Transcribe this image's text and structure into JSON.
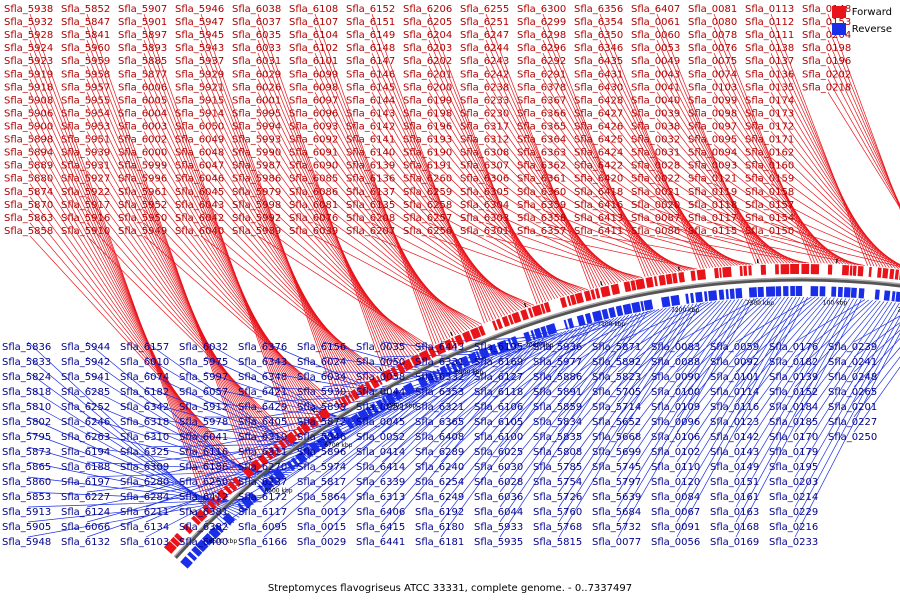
{
  "title": "Streptomyces flavogriseus ATCC 33331, complete genome. - 0..7337497",
  "legend": [
    {
      "label": "Forward",
      "color": "#e8141a"
    },
    {
      "label": "Reverse",
      "color": "#1a2ee8"
    }
  ],
  "colors": {
    "forward": "#e8141a",
    "reverse": "#1a2ee8",
    "backbone": "#555555"
  },
  "scale_labels": [
    "6500 kbp",
    "6600 kbp",
    "6700 kbp",
    "6800 kbp",
    "6900 kbp",
    "7000 kbp",
    "7100 kbp",
    "7200 kbp",
    "7300 kbp",
    "100 kbp",
    "200 kbp",
    "300 kbp"
  ],
  "forward_labels": [
    "Sfla_5938",
    "Sfla_5932",
    "Sfla_5928",
    "Sfla_5924",
    "Sfla_5923",
    "Sfla_5919",
    "Sfla_5918",
    "Sfla_5908",
    "Sfla_5906",
    "Sfla_5900",
    "Sfla_5898",
    "Sfla_5894",
    "Sfla_5889",
    "Sfla_5880",
    "Sfla_5874",
    "Sfla_5870",
    "Sfla_5863",
    "Sfla_5858",
    "Sfla_5852",
    "Sfla_5847",
    "Sfla_5841",
    "Sfla_5960",
    "Sfla_5959",
    "Sfla_5958",
    "Sfla_5957",
    "Sfla_5955",
    "Sfla_5954",
    "Sfla_5953",
    "Sfla_5951",
    "Sfla_5939",
    "Sfla_5931",
    "Sfla_5927",
    "Sfla_5922",
    "Sfla_5917",
    "Sfla_5916",
    "Sfla_5910",
    "Sfla_5907",
    "Sfla_5901",
    "Sfla_5897",
    "Sfla_5893",
    "Sfla_5885",
    "Sfla_5877",
    "Sfla_6006",
    "Sfla_6005",
    "Sfla_6004",
    "Sfla_6003",
    "Sfla_6002",
    "Sfla_6000",
    "Sfla_5999",
    "Sfla_5996",
    "Sfla_5961",
    "Sfla_5952",
    "Sfla_5950",
    "Sfla_5949",
    "Sfla_5946",
    "Sfla_5947",
    "Sfla_5945",
    "Sfla_5943",
    "Sfla_5937",
    "Sfla_5929",
    "Sfla_5921",
    "Sfla_5915",
    "Sfla_5914",
    "Sfla_6050",
    "Sfla_6049",
    "Sfla_6048",
    "Sfla_6047",
    "Sfla_6046",
    "Sfla_6045",
    "Sfla_6043",
    "Sfla_6042",
    "Sfla_6040",
    "Sfla_6038",
    "Sfla_6037",
    "Sfla_6035",
    "Sfla_6033",
    "Sfla_6031",
    "Sfla_6029",
    "Sfla_6026",
    "Sfla_6001",
    "Sfla_5995",
    "Sfla_5994",
    "Sfla_5993",
    "Sfla_5990",
    "Sfla_5987",
    "Sfla_5986",
    "Sfla_5979",
    "Sfla_5998",
    "Sfla_5992",
    "Sfla_5989",
    "Sfla_6108",
    "Sfla_6107",
    "Sfla_6104",
    "Sfla_6102",
    "Sfla_6101",
    "Sfla_6099",
    "Sfla_6098",
    "Sfla_6097",
    "Sfla_6096",
    "Sfla_6093",
    "Sfla_6092",
    "Sfla_6091",
    "Sfla_6090",
    "Sfla_6085",
    "Sfla_6086",
    "Sfla_6081",
    "Sfla_6076",
    "Sfla_6039",
    "Sfla_6152",
    "Sfla_6151",
    "Sfla_6149",
    "Sfla_6148",
    "Sfla_6147",
    "Sfla_6146",
    "Sfla_6145",
    "Sfla_6144",
    "Sfla_6143",
    "Sfla_6142",
    "Sfla_6141",
    "Sfla_6140",
    "Sfla_6139",
    "Sfla_6136",
    "Sfla_6137",
    "Sfla_6135",
    "Sfla_6208",
    "Sfla_6207",
    "Sfla_6206",
    "Sfla_6205",
    "Sfla_6204",
    "Sfla_6203",
    "Sfla_6202",
    "Sfla_6201",
    "Sfla_6200",
    "Sfla_6199",
    "Sfla_6198",
    "Sfla_6196",
    "Sfla_6193",
    "Sfla_6190",
    "Sfla_6191",
    "Sfla_6260",
    "Sfla_6259",
    "Sfla_6258",
    "Sfla_6257",
    "Sfla_6256",
    "Sfla_6255",
    "Sfla_6251",
    "Sfla_6247",
    "Sfla_6244",
    "Sfla_6243",
    "Sfla_6242",
    "Sfla_6238",
    "Sfla_6233",
    "Sfla_6230",
    "Sfla_6317",
    "Sfla_6312",
    "Sfla_6308",
    "Sfla_6307",
    "Sfla_6306",
    "Sfla_6305",
    "Sfla_6304",
    "Sfla_6303",
    "Sfla_6301",
    "Sfla_6300",
    "Sfla_6299",
    "Sfla_6298",
    "Sfla_6296",
    "Sfla_6292",
    "Sfla_6291",
    "Sfla_6378",
    "Sfla_6367",
    "Sfla_6366",
    "Sfla_6365",
    "Sfla_6364",
    "Sfla_6363",
    "Sfla_6362",
    "Sfla_6361",
    "Sfla_6360",
    "Sfla_6359",
    "Sfla_6358",
    "Sfla_6357",
    "Sfla_6356",
    "Sfla_6354",
    "Sfla_6350",
    "Sfla_6346",
    "Sfla_6435",
    "Sfla_6431",
    "Sfla_6430",
    "Sfla_6428",
    "Sfla_6427",
    "Sfla_6426",
    "Sfla_6425",
    "Sfla_6424",
    "Sfla_6422",
    "Sfla_6420",
    "Sfla_6418",
    "Sfla_6416",
    "Sfla_6413",
    "Sfla_6411",
    "Sfla_6407",
    "Sfla_0061",
    "Sfla_0060",
    "Sfla_0053",
    "Sfla_0049",
    "Sfla_0043",
    "Sfla_0041",
    "Sfla_0040",
    "Sfla_0039",
    "Sfla_0038",
    "Sfla_0032",
    "Sfla_0031",
    "Sfla_0028",
    "Sfla_0022",
    "Sfla_0021",
    "Sfla_0020",
    "Sfla_0087",
    "Sfla_0086",
    "Sfla_0081",
    "Sfla_0080",
    "Sfla_0078",
    "Sfla_0076",
    "Sfla_0075",
    "Sfla_0074",
    "Sfla_0103",
    "Sfla_0099",
    "Sfla_0098",
    "Sfla_0097",
    "Sfla_0095",
    "Sfla_0094",
    "Sfla_0093",
    "Sfla_0121",
    "Sfla_0119",
    "Sfla_0118",
    "Sfla_0117",
    "Sfla_0115",
    "Sfla_0113",
    "Sfla_0112",
    "Sfla_0111",
    "Sfla_0138",
    "Sfla_0137",
    "Sfla_0136",
    "Sfla_0135",
    "Sfla_0174",
    "Sfla_0173",
    "Sfla_0172",
    "Sfla_0171",
    "Sfla_0162",
    "Sfla_0160",
    "Sfla_0159",
    "Sfla_0158",
    "Sfla_0157",
    "Sfla_0154",
    "Sfla_0150",
    "Sfla_0148",
    "Sfla_0153",
    "Sfla_0204",
    "Sfla_0198",
    "Sfla_0196",
    "Sfla_0202",
    "Sfla_0218"
  ],
  "reverse_labels": [
    "Sfla_5836",
    "Sfla_5833",
    "Sfla_5824",
    "Sfla_5818",
    "Sfla_5810",
    "Sfla_5802",
    "Sfla_5795",
    "Sfla_5873",
    "Sfla_5865",
    "Sfla_5860",
    "Sfla_5853",
    "Sfla_5913",
    "Sfla_5905",
    "Sfla_5948",
    "Sfla_5944",
    "Sfla_5942",
    "Sfla_5941",
    "Sfla_6285",
    "Sfla_6252",
    "Sfla_6246",
    "Sfla_6263",
    "Sfla_6194",
    "Sfla_6188",
    "Sfla_6197",
    "Sfla_6227",
    "Sfla_6124",
    "Sfla_6066",
    "Sfla_6132",
    "Sfla_6157",
    "Sfla_6010",
    "Sfla_6074",
    "Sfla_6182",
    "Sfla_6342",
    "Sfla_6318",
    "Sfla_6310",
    "Sfla_6325",
    "Sfla_6309",
    "Sfla_6280",
    "Sfla_6284",
    "Sfla_6211",
    "Sfla_6134",
    "Sfla_6103",
    "Sfla_6032",
    "Sfla_5975",
    "Sfla_5997",
    "Sfla_6057",
    "Sfla_5912",
    "Sfla_5978",
    "Sfla_6041",
    "Sfla_6116",
    "Sfla_6186",
    "Sfla_6250",
    "Sfla_6412",
    "Sfla_6381",
    "Sfla_6382",
    "Sfla_6400",
    "Sfla_6376",
    "Sfla_6343",
    "Sfla_6348",
    "Sfla_6421",
    "Sfla_6429",
    "Sfla_6405",
    "Sfla_6319",
    "Sfla_6311",
    "Sfla_6270",
    "Sfla_6237",
    "Sfla_6172",
    "Sfla_6117",
    "Sfla_6095",
    "Sfla_6166",
    "Sfla_6156",
    "Sfla_6024",
    "Sfla_6034",
    "Sfla_5930",
    "Sfla_5899",
    "Sfla_5872",
    "Sfla_5846",
    "Sfla_5896",
    "Sfla_5974",
    "Sfla_5817",
    "Sfla_5864",
    "Sfla_0013",
    "Sfla_0015",
    "Sfla_0029",
    "Sfla_0035",
    "Sfla_0050",
    "Sfla_0058",
    "Sfla_0044",
    "Sfla_0051",
    "Sfla_0045",
    "Sfla_0052",
    "Sfla_0414",
    "Sfla_6414",
    "Sfla_6339",
    "Sfla_6313",
    "Sfla_6406",
    "Sfla_6415",
    "Sfla_6441",
    "Sfla_6443",
    "Sfla_6331",
    "Sfla_6332",
    "Sfla_6353",
    "Sfla_6321",
    "Sfla_6365",
    "Sfla_6408",
    "Sfla_6289",
    "Sfla_6240",
    "Sfla_6254",
    "Sfla_6249",
    "Sfla_6192",
    "Sfla_6180",
    "Sfla_6181",
    "Sfla_6195",
    "Sfla_6169",
    "Sfla_6127",
    "Sfla_6118",
    "Sfla_6106",
    "Sfla_6105",
    "Sfla_6100",
    "Sfla_6025",
    "Sfla_6030",
    "Sfla_6028",
    "Sfla_6036",
    "Sfla_6044",
    "Sfla_5933",
    "Sfla_5935",
    "Sfla_5936",
    "Sfla_5977",
    "Sfla_5886",
    "Sfla_5891",
    "Sfla_5859",
    "Sfla_5834",
    "Sfla_5835",
    "Sfla_5808",
    "Sfla_5785",
    "Sfla_5754",
    "Sfla_5726",
    "Sfla_5760",
    "Sfla_5768",
    "Sfla_5815",
    "Sfla_5871",
    "Sfla_5892",
    "Sfla_5823",
    "Sfla_5705",
    "Sfla_5714",
    "Sfla_5652",
    "Sfla_5668",
    "Sfla_5699",
    "Sfla_5745",
    "Sfla_5797",
    "Sfla_5639",
    "Sfla_5684",
    "Sfla_5732",
    "Sfla_0077",
    "Sfla_0083",
    "Sfla_0088",
    "Sfla_0090",
    "Sfla_0100",
    "Sfla_0109",
    "Sfla_0096",
    "Sfla_0106",
    "Sfla_0102",
    "Sfla_0110",
    "Sfla_0120",
    "Sfla_0084",
    "Sfla_0067",
    "Sfla_0091",
    "Sfla_0056",
    "Sfla_0059",
    "Sfla_0092",
    "Sfla_0101",
    "Sfla_0114",
    "Sfla_0116",
    "Sfla_0123",
    "Sfla_0142",
    "Sfla_0143",
    "Sfla_0149",
    "Sfla_0151",
    "Sfla_0161",
    "Sfla_0163",
    "Sfla_0168",
    "Sfla_0169",
    "Sfla_0176",
    "Sfla_0182",
    "Sfla_0139",
    "Sfla_0152",
    "Sfla_0184",
    "Sfla_0185",
    "Sfla_0170",
    "Sfla_0179",
    "Sfla_0195",
    "Sfla_0203",
    "Sfla_0214",
    "Sfla_0229",
    "Sfla_0216",
    "Sfla_0233",
    "Sfla_0239",
    "Sfla_0241",
    "Sfla_0248",
    "Sfla_0265",
    "Sfla_0201",
    "Sfla_0227",
    "Sfla_0250"
  ]
}
